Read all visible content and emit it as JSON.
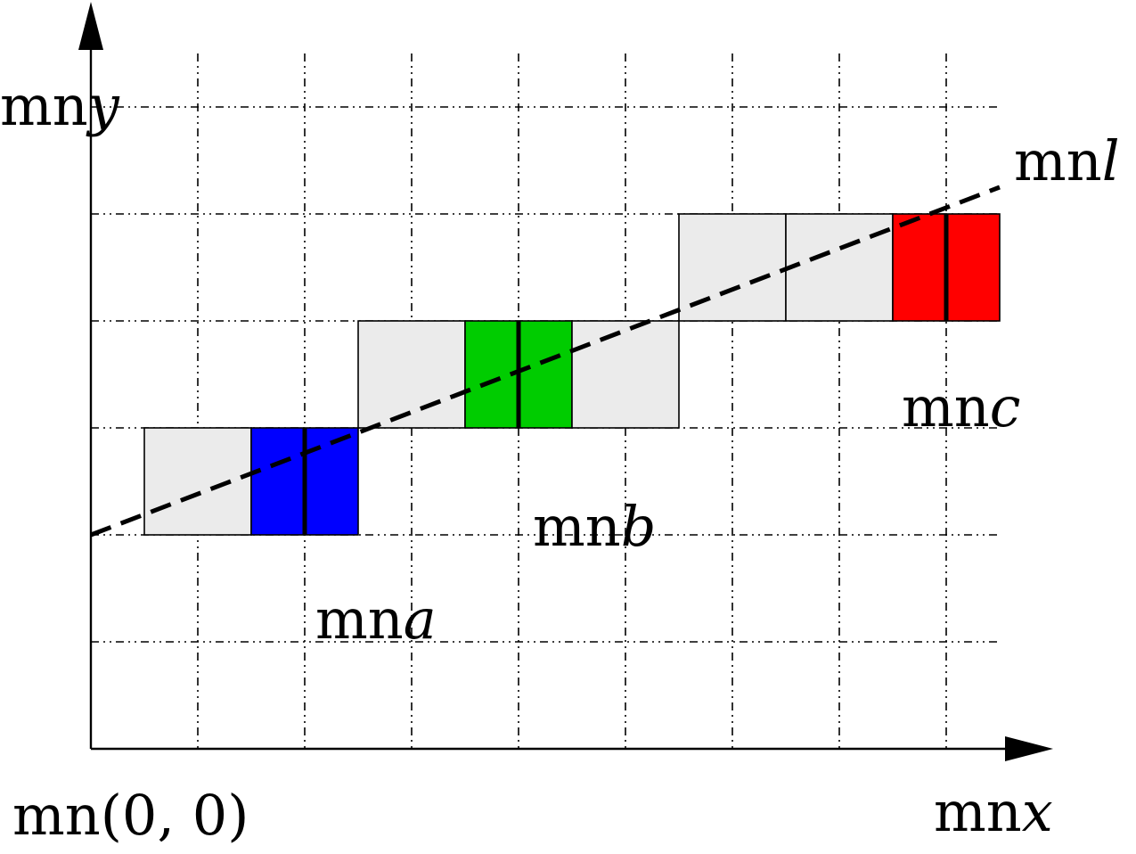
{
  "labels": {
    "origin": {
      "prefix": "mn",
      "text": "(0, 0)"
    },
    "x_axis": {
      "prefix": "mn",
      "var": "x"
    },
    "y_axis": {
      "prefix": "mn",
      "var": "y"
    },
    "line": {
      "prefix": "mn",
      "var": "l"
    },
    "a": {
      "prefix": "mn",
      "var": "a"
    },
    "b": {
      "prefix": "mn",
      "var": "b"
    },
    "c": {
      "prefix": "mn",
      "var": "c"
    }
  },
  "colors": {
    "a": "#0000ff",
    "b": "#00cc00",
    "c": "#ff0000",
    "candidate": "#ebebeb"
  },
  "grid": {
    "columns": 8,
    "rows": 6
  },
  "cells": [
    {
      "col": 0,
      "row": 2,
      "kind": "candidate"
    },
    {
      "col": 1,
      "row": 2,
      "kind": "a"
    },
    {
      "col": 2,
      "row": 3,
      "kind": "candidate"
    },
    {
      "col": 3,
      "row": 3,
      "kind": "b"
    },
    {
      "col": 4,
      "row": 3,
      "kind": "candidate"
    },
    {
      "col": 5,
      "row": 4,
      "kind": "candidate"
    },
    {
      "col": 6,
      "row": 4,
      "kind": "candidate"
    },
    {
      "col": 7,
      "row": 4,
      "kind": "c"
    }
  ],
  "line": {
    "x_start": 0,
    "y_start": 2,
    "x_end": 8.5,
    "y_end": 5.25
  }
}
